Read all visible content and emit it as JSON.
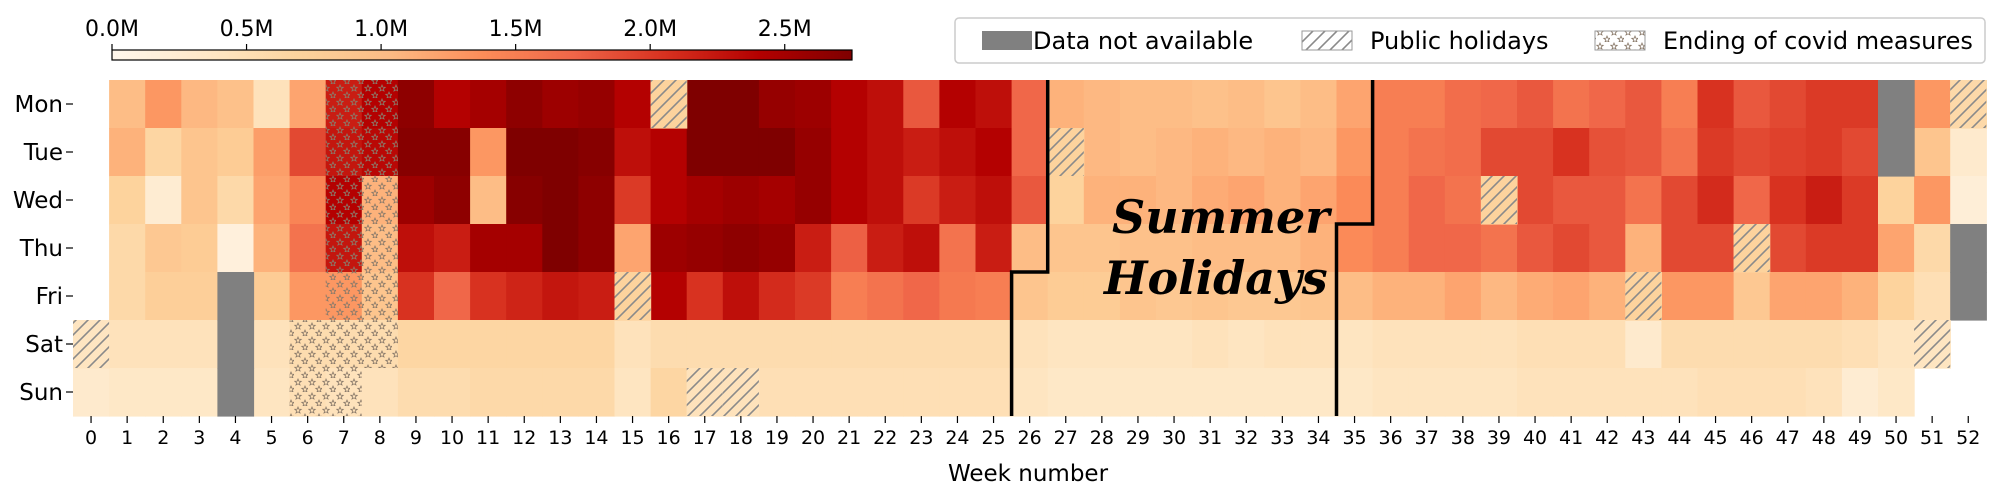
{
  "chart_data": {
    "type": "heatmap",
    "title": "",
    "xlabel": "Week number",
    "ylabel": "",
    "x_ticks": [
      "0",
      "1",
      "2",
      "3",
      "4",
      "5",
      "6",
      "7",
      "8",
      "9",
      "10",
      "11",
      "12",
      "13",
      "14",
      "15",
      "16",
      "17",
      "18",
      "19",
      "20",
      "21",
      "22",
      "23",
      "24",
      "25",
      "26",
      "27",
      "28",
      "29",
      "30",
      "31",
      "32",
      "33",
      "34",
      "35",
      "36",
      "37",
      "38",
      "39",
      "40",
      "41",
      "42",
      "43",
      "44",
      "45",
      "46",
      "47",
      "48",
      "49",
      "50",
      "51",
      "52"
    ],
    "y_categories": [
      "Mon",
      "Tue",
      "Wed",
      "Thu",
      "Fri",
      "Sat",
      "Sun"
    ],
    "first_week": 0,
    "colorbar": {
      "ticks": [
        "0.0M",
        "0.5M",
        "1.0M",
        "1.5M",
        "2.0M",
        "2.5M"
      ],
      "tick_values": [
        0,
        0.5,
        1.0,
        1.5,
        2.0,
        2.5
      ],
      "min": 0,
      "max": 2.75,
      "colormap": "OrRd"
    },
    "units": "millions",
    "values": [
      [
        null,
        1.0,
        1.3,
        1.05,
        0.95,
        0.45,
        1.2,
        2.2,
        2.4,
        2.65,
        2.4,
        2.5,
        2.65,
        2.55,
        2.6,
        2.4,
        0.7,
        2.75,
        2.75,
        2.6,
        2.55,
        2.4,
        2.3,
        1.8,
        2.4,
        2.3,
        1.7,
        1.1,
        1.05,
        1.0,
        1.0,
        0.95,
        1.0,
        0.9,
        1.0,
        1.2,
        1.5,
        1.5,
        1.65,
        1.7,
        1.8,
        1.6,
        1.7,
        1.8,
        1.5,
        2.05,
        1.8,
        1.9,
        2.0,
        2.0,
        null,
        1.3,
        0.6
      ],
      [
        null,
        1.1,
        0.65,
        0.9,
        0.8,
        1.25,
        1.9,
        2.25,
        2.35,
        2.7,
        2.7,
        1.3,
        2.75,
        2.75,
        2.7,
        2.3,
        2.4,
        2.75,
        2.75,
        2.75,
        2.6,
        2.4,
        2.3,
        2.2,
        2.3,
        2.4,
        1.7,
        0.7,
        1.05,
        1.0,
        1.05,
        1.1,
        1.05,
        1.1,
        1.05,
        1.3,
        1.5,
        1.6,
        1.65,
        1.9,
        1.9,
        2.05,
        1.85,
        1.8,
        1.6,
        2.0,
        1.9,
        1.95,
        2.0,
        1.9,
        null,
        0.9,
        0.3
      ],
      [
        null,
        0.7,
        0.25,
        0.9,
        0.6,
        1.2,
        1.45,
        2.4,
        1.1,
        2.55,
        2.65,
        1.0,
        2.7,
        2.75,
        2.65,
        2.0,
        2.4,
        2.5,
        2.55,
        2.5,
        2.6,
        2.4,
        2.3,
        2.0,
        2.2,
        2.3,
        1.8,
        0.7,
        1.1,
        1.1,
        1.05,
        1.15,
        1.2,
        1.1,
        1.2,
        1.4,
        1.5,
        1.7,
        1.6,
        0.7,
        1.9,
        1.8,
        1.8,
        1.6,
        1.9,
        2.1,
        1.7,
        2.05,
        2.2,
        2.0,
        0.7,
        1.3,
        0.2
      ],
      [
        null,
        0.6,
        0.85,
        0.8,
        0.15,
        1.1,
        1.6,
        2.25,
        1.0,
        2.3,
        2.2,
        2.5,
        2.5,
        2.75,
        2.65,
        1.2,
        2.55,
        2.6,
        2.65,
        2.6,
        2.2,
        1.75,
        2.2,
        2.3,
        1.6,
        2.2,
        1.0,
        0.9,
        0.9,
        0.95,
        0.95,
        1.0,
        1.0,
        1.0,
        1.1,
        1.4,
        1.5,
        1.7,
        1.7,
        1.6,
        1.8,
        1.9,
        1.8,
        1.1,
        1.9,
        1.9,
        0.7,
        1.9,
        2.0,
        2.0,
        1.2,
        0.6,
        null
      ],
      [
        null,
        0.6,
        0.75,
        0.75,
        null,
        0.8,
        1.3,
        1.3,
        0.9,
        2.05,
        1.7,
        2.05,
        2.15,
        2.25,
        2.2,
        0.7,
        2.4,
        2.05,
        2.3,
        2.1,
        2.0,
        1.5,
        1.6,
        1.7,
        1.55,
        1.5,
        0.9,
        0.8,
        0.8,
        0.9,
        0.85,
        0.9,
        0.85,
        0.85,
        0.9,
        1.0,
        1.1,
        1.1,
        1.2,
        1.05,
        1.15,
        1.2,
        1.1,
        0.7,
        1.3,
        1.3,
        0.85,
        1.2,
        1.2,
        1.1,
        0.7,
        0.5,
        null
      ],
      [
        0.4,
        0.45,
        0.45,
        0.45,
        null,
        0.45,
        0.55,
        0.55,
        0.55,
        0.65,
        0.65,
        0.65,
        0.65,
        0.65,
        0.65,
        0.45,
        0.55,
        0.55,
        0.55,
        0.55,
        0.55,
        0.55,
        0.55,
        0.55,
        0.55,
        0.55,
        0.45,
        0.4,
        0.4,
        0.4,
        0.4,
        0.45,
        0.4,
        0.45,
        0.45,
        0.4,
        0.45,
        0.45,
        0.45,
        0.45,
        0.5,
        0.5,
        0.5,
        0.3,
        0.55,
        0.55,
        0.55,
        0.55,
        0.55,
        0.5,
        0.4,
        0.4,
        null
      ],
      [
        0.3,
        0.35,
        0.35,
        0.35,
        null,
        0.4,
        0.5,
        0.45,
        0.45,
        0.55,
        0.55,
        0.6,
        0.6,
        0.6,
        0.6,
        0.4,
        0.65,
        0.45,
        0.45,
        0.5,
        0.5,
        0.5,
        0.5,
        0.5,
        0.5,
        0.5,
        0.4,
        0.35,
        0.35,
        0.35,
        0.35,
        0.35,
        0.35,
        0.35,
        0.35,
        0.35,
        0.4,
        0.4,
        0.4,
        0.4,
        0.45,
        0.45,
        0.45,
        0.45,
        0.45,
        0.5,
        0.5,
        0.5,
        0.45,
        0.25,
        0.35,
        null,
        null
      ]
    ],
    "special_cells": {
      "data_not_available": [
        [
          4,
          4
        ],
        [
          4,
          5
        ],
        [
          4,
          6
        ],
        [
          50,
          0
        ],
        [
          50,
          1
        ],
        [
          52,
          3
        ],
        [
          52,
          4
        ]
      ],
      "public_holidays": [
        [
          0,
          5
        ],
        [
          16,
          0
        ],
        [
          27,
          1
        ],
        [
          39,
          2
        ],
        [
          46,
          3
        ],
        [
          15,
          4
        ],
        [
          43,
          4
        ],
        [
          51,
          5
        ],
        [
          52,
          0
        ],
        [
          17,
          6
        ],
        [
          18,
          6
        ]
      ],
      "ending_of_covid_measures": [
        [
          7,
          0
        ],
        [
          7,
          1
        ],
        [
          7,
          2
        ],
        [
          7,
          3
        ],
        [
          7,
          4
        ],
        [
          8,
          0
        ],
        [
          8,
          1
        ],
        [
          8,
          2
        ],
        [
          8,
          3
        ],
        [
          8,
          4
        ],
        [
          6,
          5
        ],
        [
          7,
          5
        ],
        [
          8,
          5
        ],
        [
          6,
          6
        ],
        [
          7,
          6
        ]
      ]
    },
    "legend": {
      "placement": "top-right",
      "items": [
        {
          "label": "Data not available",
          "style": "solid",
          "color": "#808080"
        },
        {
          "label": "Public holidays",
          "style": "hatch-diagonal"
        },
        {
          "label": "Ending of covid measures",
          "style": "stars"
        }
      ]
    },
    "annotation": {
      "text_lines": [
        "Summer",
        "Holidays"
      ],
      "boundary_left": {
        "weeks": [
          25,
          26
        ],
        "split_after_day_index": 3
      },
      "boundary_right": {
        "weeks": [
          34,
          35
        ],
        "split_after_day_index": 2
      }
    }
  }
}
